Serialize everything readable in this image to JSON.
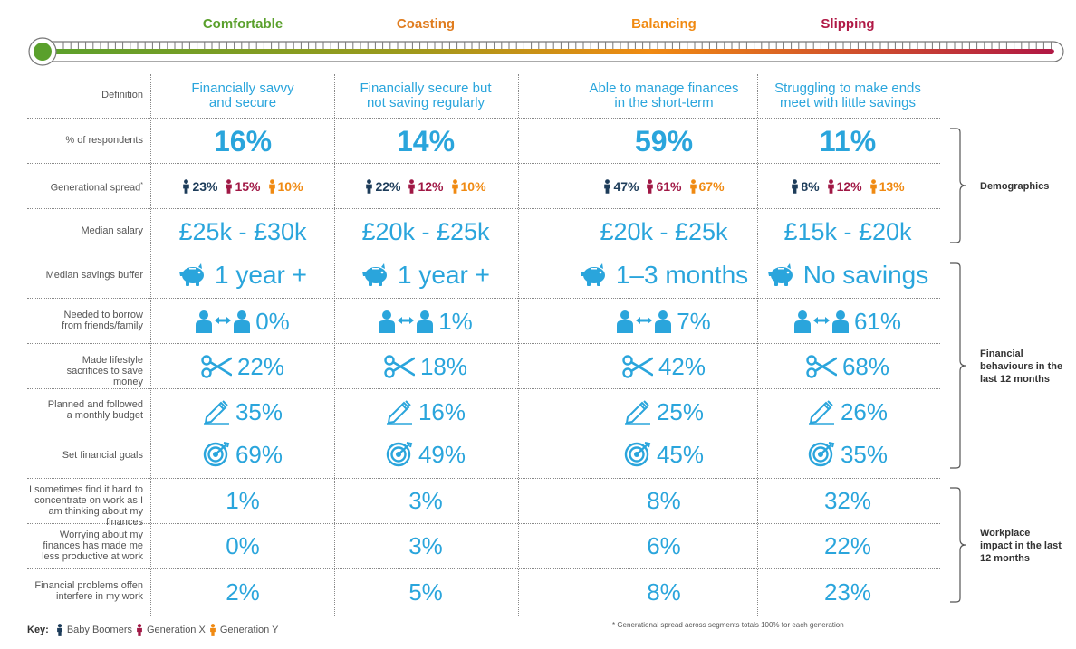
{
  "segments": [
    {
      "title": "Comfortable",
      "color": "#5aa02c"
    },
    {
      "title": "Coasting",
      "color": "#e07c1e"
    },
    {
      "title": "Balancing",
      "color": "#f08a12"
    },
    {
      "title": "Slipping",
      "color": "#b01845"
    }
  ],
  "row_labels": {
    "definition": "Definition",
    "respondents": "% of respondents",
    "generational": "Generational spread",
    "generational_mark": "*",
    "salary": "Median salary",
    "savings": "Median savings buffer",
    "borrow": "Needed to borrow from friends/family",
    "sacrifices": "Made lifestyle sacrifices to save money",
    "budget": "Planned and followed a monthly budget",
    "goals": "Set financial goals",
    "concentrate": "I sometimes find it hard to concentrate on work as I am thinking about my finances",
    "productive": "Worrying about my finances has made me less productive at work",
    "interfere": "Financial problems offen interfere in my work"
  },
  "columns": [
    {
      "definition": "Financially savvy and secure",
      "respondents": "16%",
      "gen_boomers": "23%",
      "gen_x": "15%",
      "gen_y": "10%",
      "salary": "£25k - £30k",
      "savings": "1 year +",
      "borrow": "0%",
      "sacrifices": "22%",
      "budget": "35%",
      "goals": "69%",
      "concentrate": "1%",
      "productive": "0%",
      "interfere": "2%"
    },
    {
      "definition": "Financially secure but not saving regularly",
      "respondents": "14%",
      "gen_boomers": "22%",
      "gen_x": "12%",
      "gen_y": "10%",
      "salary": "£20k - £25k",
      "savings": "1 year +",
      "borrow": "1%",
      "sacrifices": "18%",
      "budget": "16%",
      "goals": "49%",
      "concentrate": "3%",
      "productive": "3%",
      "interfere": "5%"
    },
    {
      "definition": "Able to manage finances in the short-term",
      "respondents": "59%",
      "gen_boomers": "47%",
      "gen_x": "61%",
      "gen_y": "67%",
      "salary": "£20k - £25k",
      "savings": "1–3 months",
      "borrow": "7%",
      "sacrifices": "42%",
      "budget": "25%",
      "goals": "45%",
      "concentrate": "8%",
      "productive": "6%",
      "interfere": "8%"
    },
    {
      "definition": "Struggling to make ends meet with little savings",
      "respondents": "11%",
      "gen_boomers": "8%",
      "gen_x": "12%",
      "gen_y": "13%",
      "salary": "£15k - £20k",
      "savings": "No savings",
      "borrow": "61%",
      "sacrifices": "68%",
      "budget": "26%",
      "goals": "35%",
      "concentrate": "32%",
      "productive": "22%",
      "interfere": "23%"
    }
  ],
  "groups": {
    "demographics": "Demographics",
    "behaviours": "Financial behaviours in the last 12 months",
    "workplace": "Workplace impact in the last 12 months"
  },
  "key": {
    "label": "Key:",
    "boomers": "Baby Boomers",
    "gen_x": "Generation X",
    "gen_y": "Generation Y"
  },
  "footnote": "* Generational spread across segments totals 100% for each generation",
  "colors": {
    "accent": "#2aa5dc",
    "boomers": "#1d3c5a",
    "gen_x": "#a01845",
    "gen_y": "#f08a12"
  },
  "icons": {
    "savings": "piggy-bank-icon",
    "borrow": "people-exchange-icon",
    "sacrifices": "scissors-icon",
    "budget": "pencil-icon",
    "goals": "target-icon",
    "person": "person-icon"
  }
}
